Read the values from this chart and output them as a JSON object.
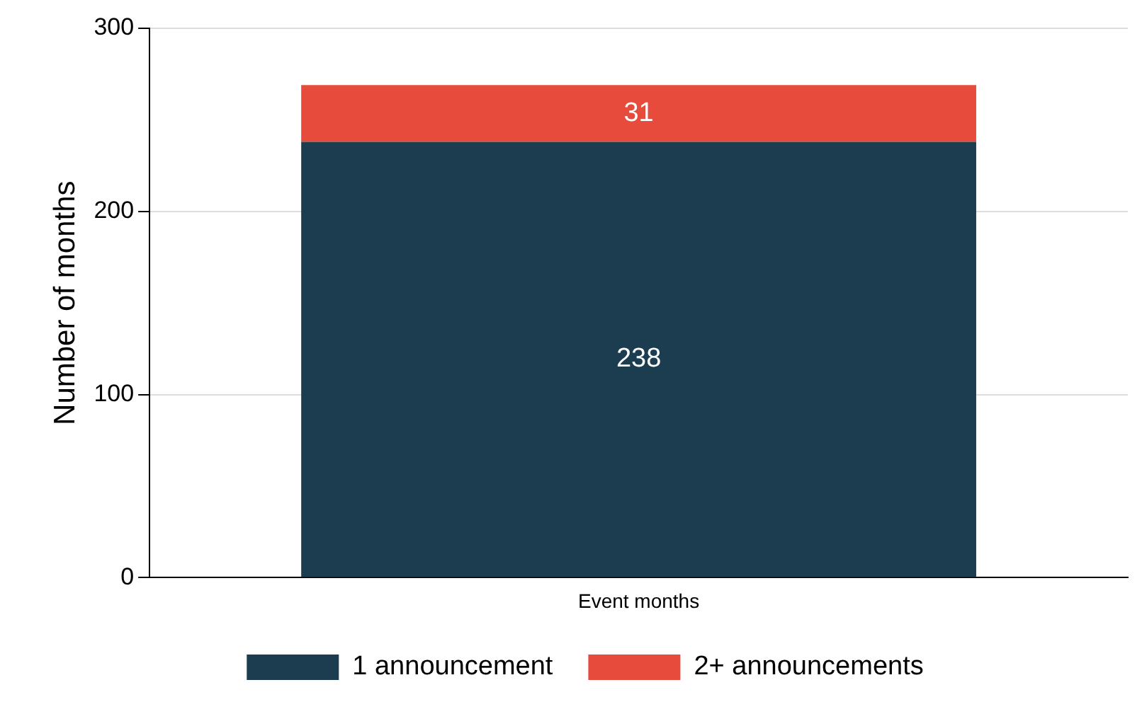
{
  "chart_data": {
    "type": "bar",
    "stacked": true,
    "categories": [
      "Event months"
    ],
    "ylabel": "Number of months",
    "series": [
      {
        "name": "1 announcement",
        "color": "#1c3d4f",
        "values": [
          238
        ]
      },
      {
        "name": "2+ announcements",
        "color": "#e64b3b",
        "values": [
          31
        ]
      }
    ],
    "ylim": [
      0,
      300
    ],
    "yticks": [
      0,
      100,
      200,
      300
    ],
    "grid": "y",
    "legend": "bottom",
    "data_labels": true
  }
}
